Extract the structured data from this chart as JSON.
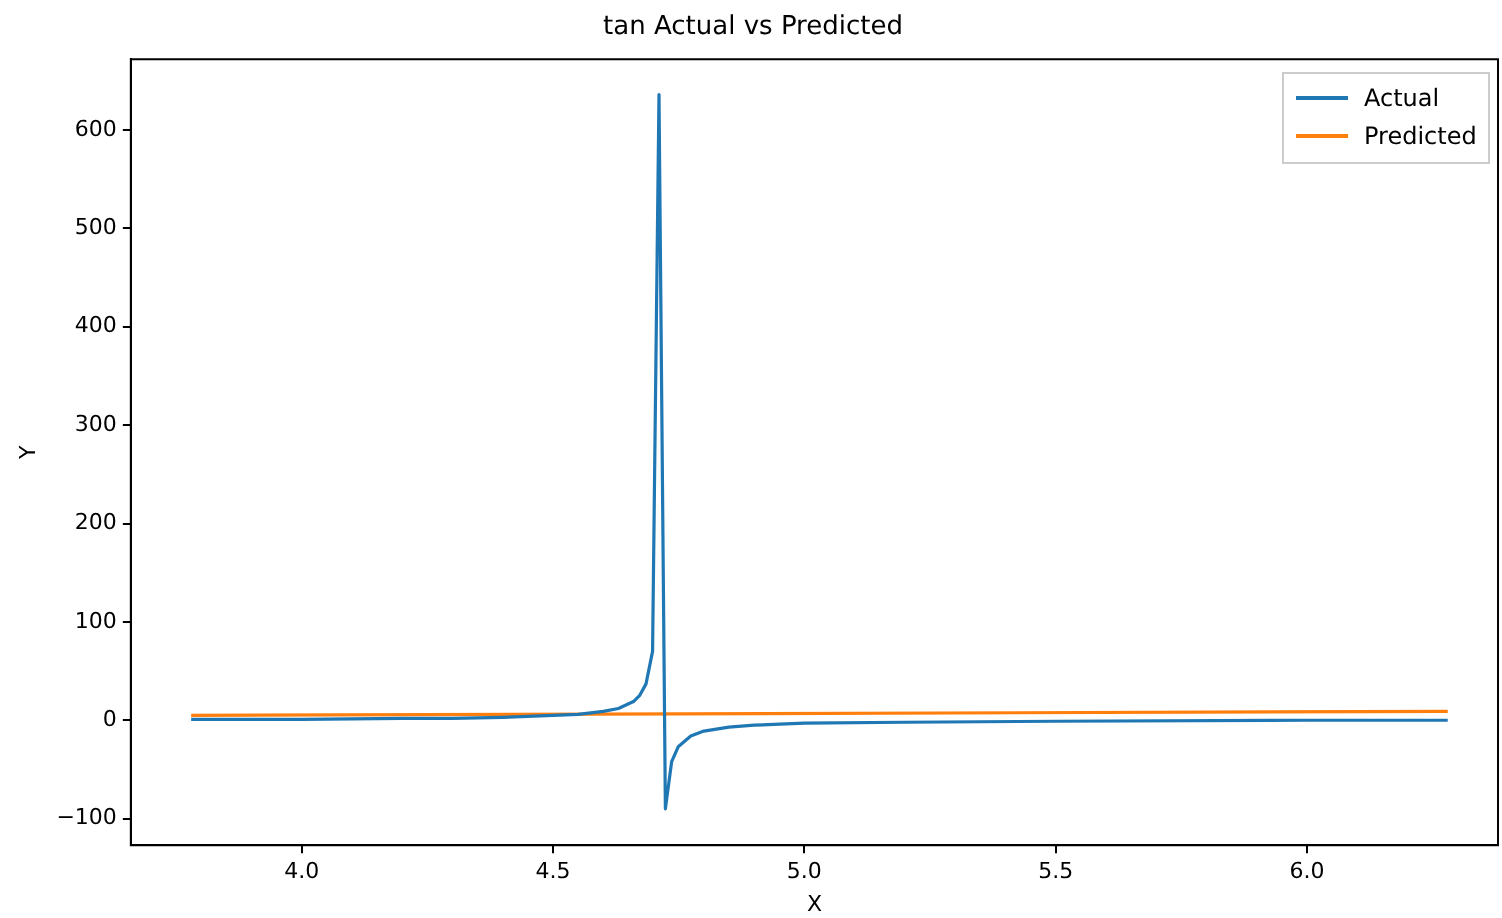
{
  "chart_data": {
    "type": "line",
    "title": "tan Actual vs Predicted",
    "xlabel": "X",
    "ylabel": "Y",
    "xlim": [
      3.66,
      6.38
    ],
    "xticks": [
      {
        "value": 4,
        "label": "4.0"
      },
      4.5,
      {
        "value": 5,
        "label": "5.0"
      },
      5.5,
      {
        "value": 6,
        "label": "6.0"
      }
    ],
    "ylim": [
      -127,
      672
    ],
    "yticks": [
      {
        "value": -100,
        "label": "−100"
      },
      0,
      100,
      200,
      300,
      400,
      500,
      600
    ],
    "legend": "top right",
    "grid": false,
    "marker": "none",
    "line_style": "solid",
    "series": [
      {
        "name": "Actual",
        "color": "#1f77b4",
        "x": [
          3.78,
          4.0,
          4.2,
          4.3,
          4.4,
          4.5,
          4.55,
          4.6,
          4.63,
          4.66,
          4.672,
          4.685,
          4.698,
          4.7108,
          4.7235,
          4.736,
          4.749,
          4.774,
          4.8,
          4.85,
          4.9,
          5.0,
          5.2,
          5.5,
          6.0,
          6.28
        ],
        "values": [
          1,
          1,
          2,
          2,
          3,
          5,
          6,
          9,
          12,
          19,
          25,
          37,
          70,
          636,
          -90,
          -42,
          -27,
          -16,
          -11,
          -7,
          -5,
          -3,
          -2,
          -1,
          0,
          0
        ]
      },
      {
        "name": "Predicted",
        "color": "#ff7f0e",
        "x": [
          3.78,
          6.28
        ],
        "values": [
          5,
          9
        ]
      }
    ]
  }
}
